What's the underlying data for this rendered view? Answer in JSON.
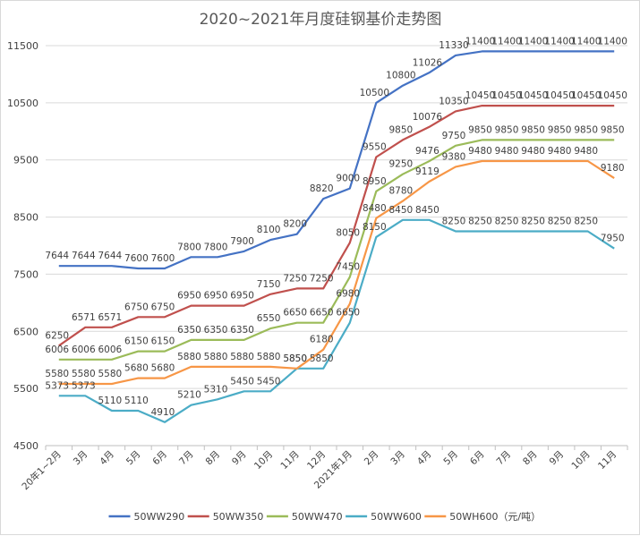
{
  "chart_data": {
    "type": "line",
    "title": "2020~2021年月度硅钢基价走势图",
    "xlabel": "",
    "ylabel": "",
    "ylim": [
      4500,
      11500
    ],
    "yticks": [
      4500,
      5500,
      6500,
      7500,
      8500,
      9500,
      10500,
      11500
    ],
    "ytick_labels": [
      "4500",
      "5500",
      "6500",
      "7500",
      "8500",
      "9500",
      "10500",
      "11500"
    ],
    "grid": true,
    "legend": "bottom",
    "categories": [
      "20年1~2月",
      "3月",
      "4月",
      "5月",
      "6月",
      "7月",
      "8月",
      "9月",
      "10月",
      "11月",
      "12月",
      "2021年1月",
      "2月",
      "3月",
      "4月",
      "5月",
      "6月",
      "7月",
      "8月",
      "9月",
      "10月",
      "11月"
    ],
    "series": [
      {
        "name": "50WW290",
        "color": "#4472c4",
        "values": [
          7644,
          7644,
          7644,
          7600,
          7600,
          7800,
          7800,
          7900,
          8100,
          8200,
          8820,
          9000,
          10500,
          10800,
          11026,
          11330,
          11400,
          11400,
          11400,
          11400,
          11400,
          11400
        ]
      },
      {
        "name": "50WW350",
        "color": "#c0504d",
        "values": [
          6250,
          6571,
          6571,
          6750,
          6750,
          6950,
          6950,
          6950,
          7150,
          7250,
          7250,
          8050,
          9550,
          9850,
          10076,
          10350,
          10450,
          10450,
          10450,
          10450,
          10450,
          10450
        ]
      },
      {
        "name": "50WW470",
        "color": "#9bbb59",
        "values": [
          6006,
          6006,
          6006,
          6150,
          6150,
          6350,
          6350,
          6350,
          6550,
          6650,
          6650,
          7450,
          8950,
          9250,
          9476,
          9750,
          9850,
          9850,
          9850,
          9850,
          9850,
          9850
        ]
      },
      {
        "name": "50WW600",
        "color": "#4bacc6",
        "values": [
          5373,
          5373,
          5110,
          5110,
          4910,
          5210,
          5310,
          5450,
          5450,
          5850,
          5850,
          6650,
          8150,
          8450,
          8450,
          8250,
          8250,
          8250,
          8250,
          8250,
          8250,
          7950
        ]
      },
      {
        "name": "50WH600（元/吨）",
        "color": "#f79646",
        "values": [
          5580,
          5580,
          5580,
          5680,
          5680,
          5880,
          5880,
          5880,
          5880,
          5850,
          6180,
          6980,
          8480,
          8780,
          9119,
          9380,
          9480,
          9480,
          9480,
          9480,
          9480,
          9180
        ]
      }
    ]
  }
}
